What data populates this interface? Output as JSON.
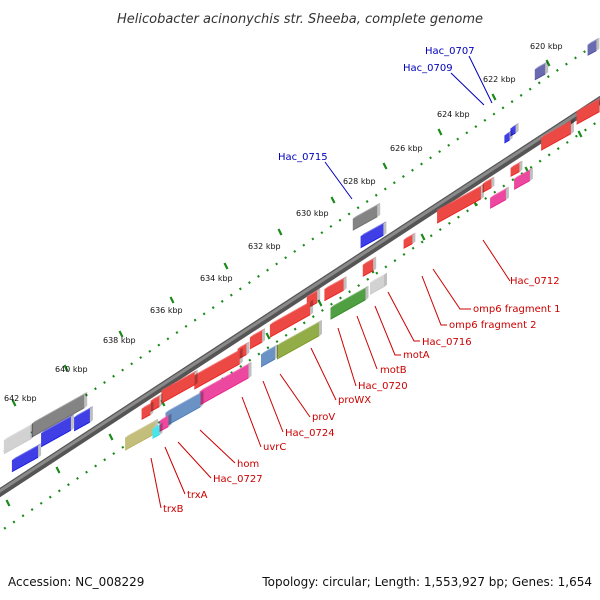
{
  "title": "Helicobacter acinonychis str. Sheeba, complete genome",
  "footer": {
    "accession": "Accession: NC_008229",
    "topology": "Topology: circular; Length: 1,553,927 bp; Genes: 1,654"
  },
  "colors": {
    "red": "#e8201c",
    "blue": "#1515e0",
    "gray": "#6a6a6a",
    "light_gray": "#c8c8c8",
    "green": "#2a8a1a",
    "olive": "#7a9a20",
    "steel_blue": "#4a7ab8",
    "pink": "#e8208a",
    "khaki": "#b8b060",
    "cyan": "#20e0e8",
    "navy": "#4a4aa0",
    "backbone": "#8a8a8a",
    "tick_green": "#1a8a1a"
  },
  "ticks": [
    "620 kbp",
    "622 kbp",
    "624 kbp",
    "626 kbp",
    "628 kbp",
    "630 kbp",
    "632 kbp",
    "634 kbp",
    "636 kbp",
    "638 kbp",
    "640 kbp",
    "642 kbp"
  ],
  "labels_blue": [
    "Hac_0707",
    "Hac_0709",
    "Hac_0715"
  ],
  "labels_red": [
    "Hac_0712",
    "omp6 fragment 1",
    "omp6 fragment 2",
    "Hac_0716",
    "motA",
    "motB",
    "Hac_0720",
    "proWX",
    "proV",
    "Hac_0724",
    "uvrC",
    "hom",
    "Hac_0727",
    "trxA",
    "trxB"
  ]
}
